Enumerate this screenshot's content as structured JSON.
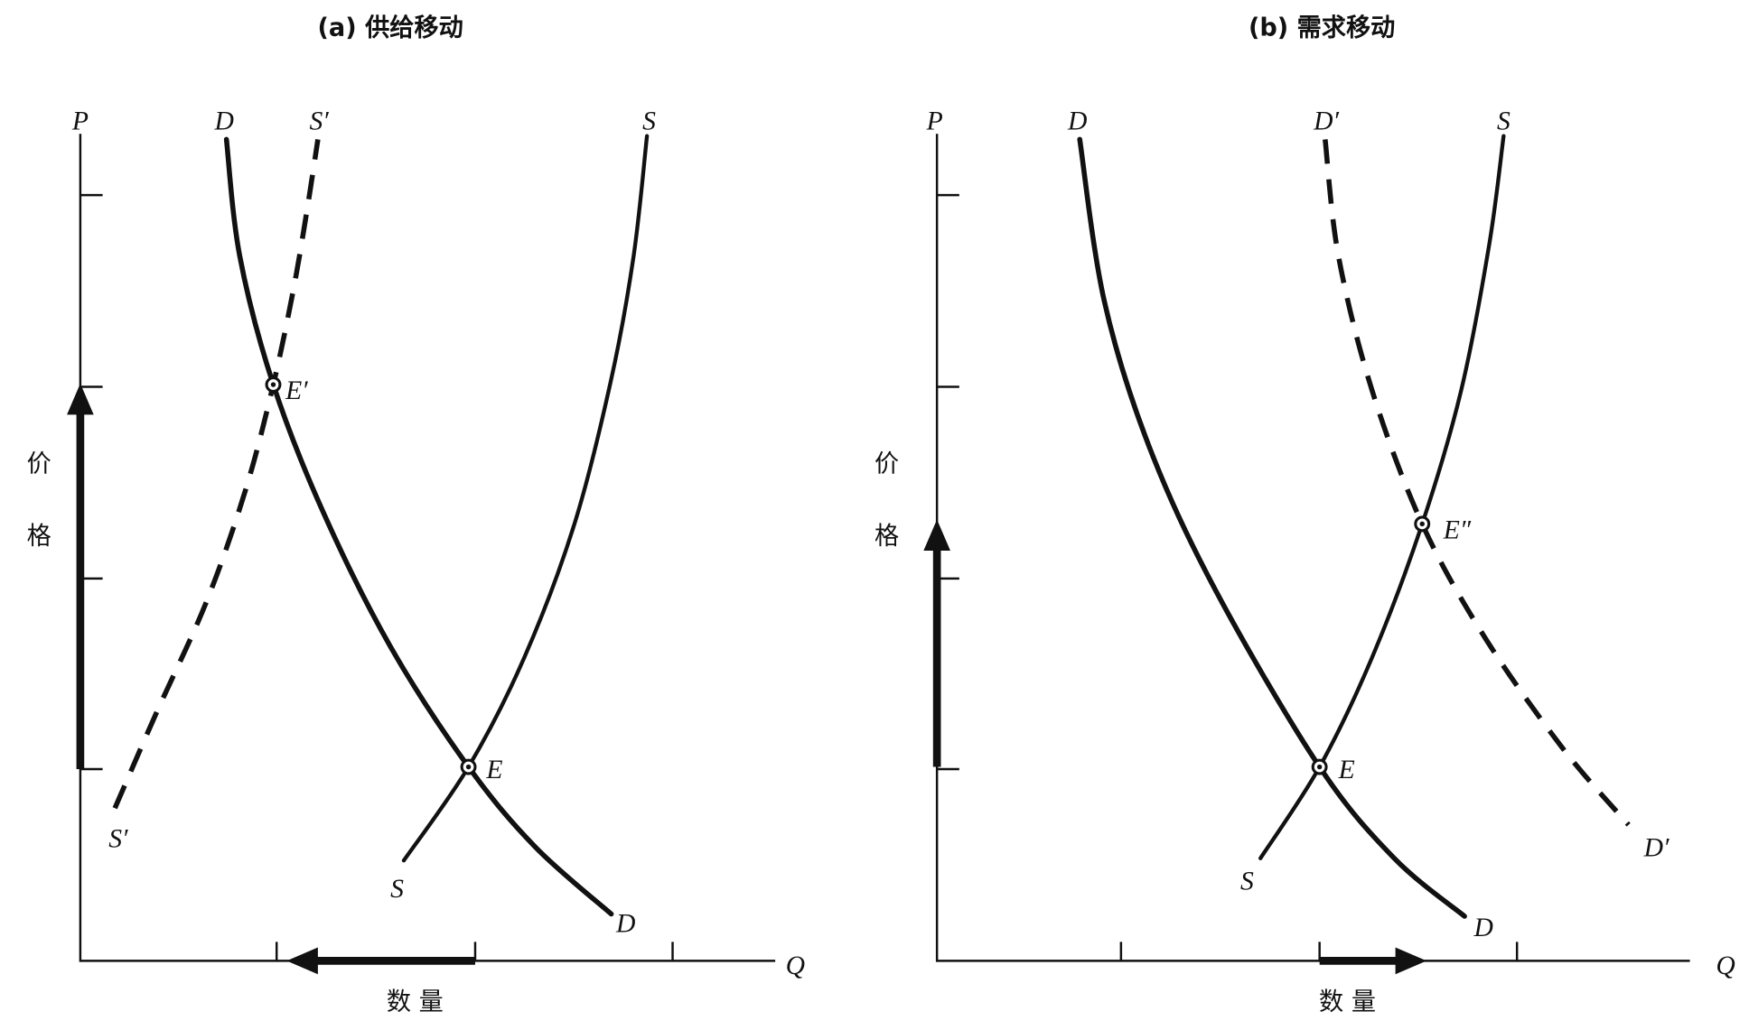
{
  "panels": [
    {
      "title": "(a) 供给移动",
      "y_axis": "P",
      "x_axis": "Q",
      "y_label": [
        "价",
        "格"
      ],
      "x_label": "数 量",
      "curve_labels": {
        "d_top": "D",
        "s_prime_top": "S′",
        "s_top": "S",
        "s_prime_bottom": "S′",
        "s_bottom": "S",
        "d_bottom": "D"
      },
      "points": {
        "e_prime": "E′",
        "e": "E"
      }
    },
    {
      "title": "(b) 需求移动",
      "y_axis": "P",
      "x_axis": "Q",
      "y_label": [
        "价",
        "格"
      ],
      "x_label": "数 量",
      "curve_labels": {
        "d_top": "D",
        "d_prime_top": "D′",
        "s_top": "S",
        "s_bottom": "S",
        "d_bottom": "D",
        "d_prime_bottom": "D′"
      },
      "points": {
        "e": "E",
        "e_double_prime": "E″"
      }
    }
  ]
}
